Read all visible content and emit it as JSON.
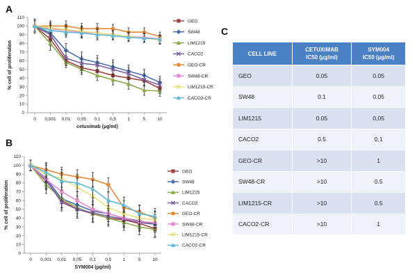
{
  "panels": {
    "a_letter": "A",
    "b_letter": "B",
    "c_letter": "C"
  },
  "series_styles": [
    {
      "name": "GEO",
      "color": "#a04040",
      "marker": "square"
    },
    {
      "name": "SW48",
      "color": "#4a6fb0",
      "marker": "diamond"
    },
    {
      "name": "LIM1215",
      "color": "#8aa84a",
      "marker": "triangle"
    },
    {
      "name": "CACO2",
      "color": "#7a5fa0",
      "marker": "x"
    },
    {
      "name": "GEO-CR",
      "color": "#e08a3a",
      "marker": "circle"
    },
    {
      "name": "SW48-CR",
      "color": "#e58ad0",
      "marker": "square"
    },
    {
      "name": "LIM1215-CR",
      "color": "#e8e07a",
      "marker": "x"
    },
    {
      "name": "CACO2-CR",
      "color": "#5fb8d8",
      "marker": "triangle"
    }
  ],
  "chart_data": [
    {
      "id": "A",
      "type": "line",
      "title": "",
      "xlabel": "cetuximab (µg/ml)",
      "ylabel": "% cell of proliferation",
      "categories": [
        "0",
        "0,001",
        "0,01",
        "0,05",
        "0,1",
        "0,5",
        "1",
        "5",
        "10"
      ],
      "ylim": [
        0,
        110
      ],
      "yticks": [
        0,
        10,
        20,
        30,
        40,
        50,
        60,
        70,
        80,
        90,
        100,
        110
      ],
      "legend": "right",
      "series": [
        {
          "name": "GEO",
          "values": [
            100,
            85,
            60,
            52,
            48,
            43,
            40,
            37,
            28
          ],
          "err": [
            8,
            8,
            6,
            6,
            6,
            6,
            6,
            6,
            6
          ]
        },
        {
          "name": "SW48",
          "values": [
            100,
            92,
            72,
            62,
            58,
            53,
            48,
            43,
            35
          ],
          "err": [
            8,
            8,
            8,
            8,
            8,
            8,
            7,
            7,
            7
          ]
        },
        {
          "name": "LIM1215",
          "values": [
            100,
            80,
            58,
            50,
            43,
            38,
            33,
            26,
            25
          ],
          "err": [
            8,
            8,
            6,
            6,
            6,
            6,
            6,
            6,
            6
          ]
        },
        {
          "name": "CACO2",
          "values": [
            100,
            90,
            63,
            57,
            55,
            50,
            45,
            38,
            32
          ],
          "err": [
            8,
            8,
            8,
            8,
            8,
            8,
            7,
            7,
            7
          ]
        },
        {
          "name": "GEO-CR",
          "values": [
            100,
            100,
            100,
            97,
            97,
            97,
            93,
            93,
            88
          ],
          "err": [
            6,
            6,
            6,
            6,
            6,
            5,
            5,
            5,
            5
          ]
        },
        {
          "name": "SW48-CR",
          "values": [
            100,
            97,
            95,
            93,
            92,
            90,
            88,
            87,
            85
          ],
          "err": [
            6,
            6,
            6,
            6,
            6,
            5,
            5,
            5,
            5
          ]
        },
        {
          "name": "LIM1215-CR",
          "values": [
            100,
            98,
            96,
            94,
            92,
            90,
            88,
            86,
            84
          ],
          "err": [
            6,
            6,
            6,
            6,
            6,
            5,
            5,
            5,
            5
          ]
        },
        {
          "name": "CACO2-CR",
          "values": [
            100,
            95,
            93,
            92,
            90,
            89,
            87,
            86,
            85
          ],
          "err": [
            6,
            6,
            6,
            6,
            6,
            5,
            5,
            5,
            5
          ]
        }
      ]
    },
    {
      "id": "B",
      "type": "line",
      "title": "",
      "xlabel": "SYM004 (µg/ml)",
      "ylabel": "% cell of proliferation",
      "categories": [
        "0",
        "0,001",
        "0,01",
        "0,05",
        "0,1",
        "0,5",
        "1",
        "5",
        "10"
      ],
      "ylim": [
        0,
        110
      ],
      "yticks": [
        0,
        10,
        20,
        30,
        40,
        50,
        60,
        70,
        80,
        90,
        100,
        110
      ],
      "legend": "right",
      "series": [
        {
          "name": "GEO",
          "values": [
            100,
            82,
            60,
            50,
            45,
            40,
            38,
            34,
            28
          ],
          "err": [
            6,
            10,
            10,
            10,
            10,
            9,
            9,
            9,
            9
          ]
        },
        {
          "name": "SW48",
          "values": [
            100,
            85,
            62,
            55,
            48,
            45,
            40,
            37,
            33
          ],
          "err": [
            6,
            10,
            10,
            10,
            10,
            9,
            9,
            9,
            9
          ]
        },
        {
          "name": "LIM1215",
          "values": [
            100,
            78,
            62,
            52,
            45,
            40,
            35,
            30,
            27
          ],
          "err": [
            6,
            10,
            10,
            10,
            10,
            9,
            9,
            9,
            9
          ]
        },
        {
          "name": "CACO2",
          "values": [
            100,
            83,
            58,
            50,
            46,
            42,
            39,
            35,
            33
          ],
          "err": [
            6,
            10,
            10,
            10,
            10,
            9,
            9,
            9,
            9
          ]
        },
        {
          "name": "GEO-CR",
          "values": [
            100,
            95,
            90,
            87,
            84,
            78,
            52,
            47,
            40
          ],
          "err": [
            6,
            8,
            8,
            8,
            8,
            8,
            8,
            8,
            8
          ]
        },
        {
          "name": "SW48-CR",
          "values": [
            100,
            84,
            70,
            60,
            50,
            45,
            40,
            36,
            35
          ],
          "err": [
            6,
            10,
            10,
            10,
            10,
            9,
            9,
            9,
            9
          ]
        },
        {
          "name": "LIM1215-CR",
          "values": [
            100,
            90,
            85,
            75,
            65,
            52,
            45,
            40,
            38
          ],
          "err": [
            6,
            10,
            10,
            10,
            10,
            9,
            9,
            9,
            9
          ]
        },
        {
          "name": "CACO2-CR",
          "values": [
            100,
            92,
            82,
            80,
            73,
            60,
            55,
            45,
            42
          ],
          "err": [
            6,
            10,
            10,
            10,
            10,
            9,
            9,
            9,
            9
          ]
        }
      ]
    },
    {
      "id": "C",
      "type": "table",
      "columns": [
        "CELL LINE",
        "CETUXIMAB IC50 (µg/ml)",
        "SYM004 IC50 (µg/ml)"
      ],
      "rows": [
        [
          "GEO",
          "0.05",
          "0.05"
        ],
        [
          "SW48",
          "0.1",
          "0.05"
        ],
        [
          "LIM1215",
          "0.05",
          "0,05"
        ],
        [
          "CACO2",
          "0.5",
          "0,1"
        ],
        [
          "GEO-CR",
          ">10",
          "1"
        ],
        [
          "SW48-CR",
          ">10",
          "0.5"
        ],
        [
          "LIM1215-CR",
          ">10",
          "0.5"
        ],
        [
          "CACO2-CR",
          ">10",
          "1"
        ]
      ]
    }
  ],
  "table_header": {
    "col1": "CELL LINE",
    "col2_line1": "CETUXIMAB",
    "col2_line2": "IC50 (µg/ml)",
    "col3_line1": "SYM004",
    "col3_line2": "IC50 (µg/ml)"
  }
}
